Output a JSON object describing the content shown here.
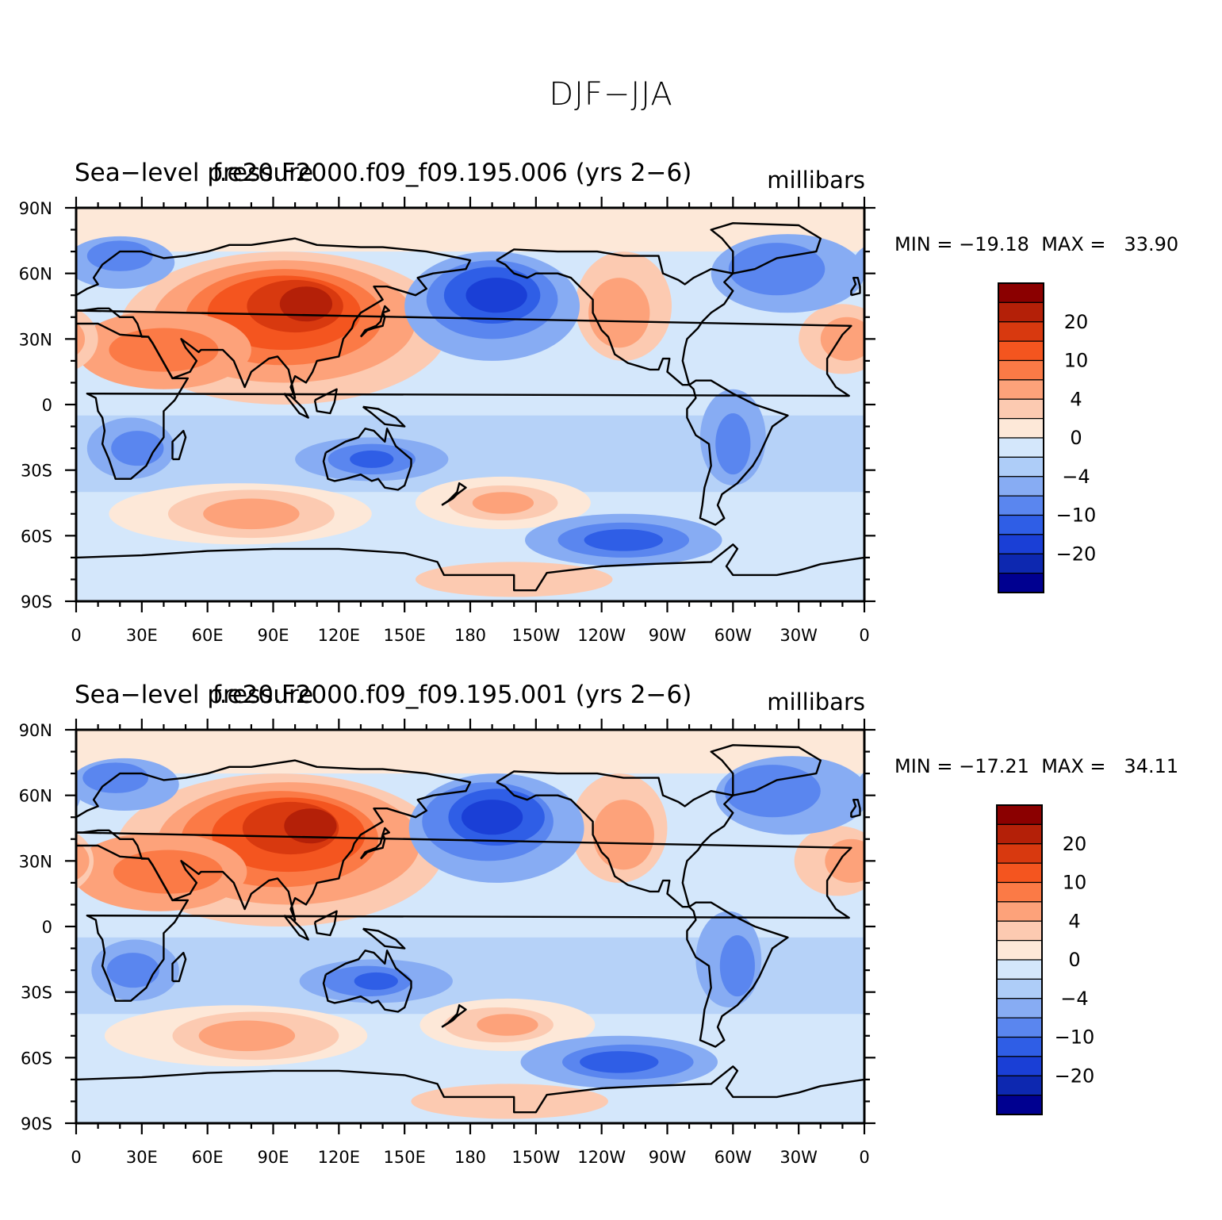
{
  "figure": {
    "title": "DJF−JJA"
  },
  "panels": [
    {
      "left_title": "Sea−level pressure",
      "center_title": "f.e20.F2000.f09_f09.195.006 (yrs 2−6)",
      "units": "millibars",
      "min_label": "MIN",
      "min_value": "−19.18",
      "max_label": "MAX",
      "max_value": "33.90"
    },
    {
      "left_title": "Sea−level pressure",
      "center_title": "f.e20.F2000.f09_f09.195.001 (yrs 2−6)",
      "units": "millibars",
      "min_label": "MIN",
      "min_value": "−17.21",
      "max_label": "MAX",
      "max_value": "34.11"
    }
  ],
  "axes": {
    "lat_labels": [
      "90N",
      "60N",
      "30N",
      "0",
      "30S",
      "60S",
      "90S"
    ],
    "lon_labels": [
      "0",
      "30E",
      "60E",
      "90E",
      "120E",
      "150E",
      "180",
      "150W",
      "120W",
      "90W",
      "60W",
      "30W",
      "0"
    ]
  },
  "colorbar": {
    "labels": [
      "20",
      "10",
      "4",
      "0",
      "−4",
      "−10",
      "−20"
    ],
    "colors": [
      "#8b0000",
      "#b42008",
      "#d8390f",
      "#f4551f",
      "#fb7a46",
      "#fda27a",
      "#fccab1",
      "#fde8d8",
      "#d4e7fb",
      "#aecdf8",
      "#87acf3",
      "#5a86ef",
      "#2f5ee6",
      "#1a3fd6",
      "#0d28b0",
      "#000090"
    ]
  },
  "colors": {
    "background_field": "#d4e7fb",
    "coastline": "#000000"
  }
}
